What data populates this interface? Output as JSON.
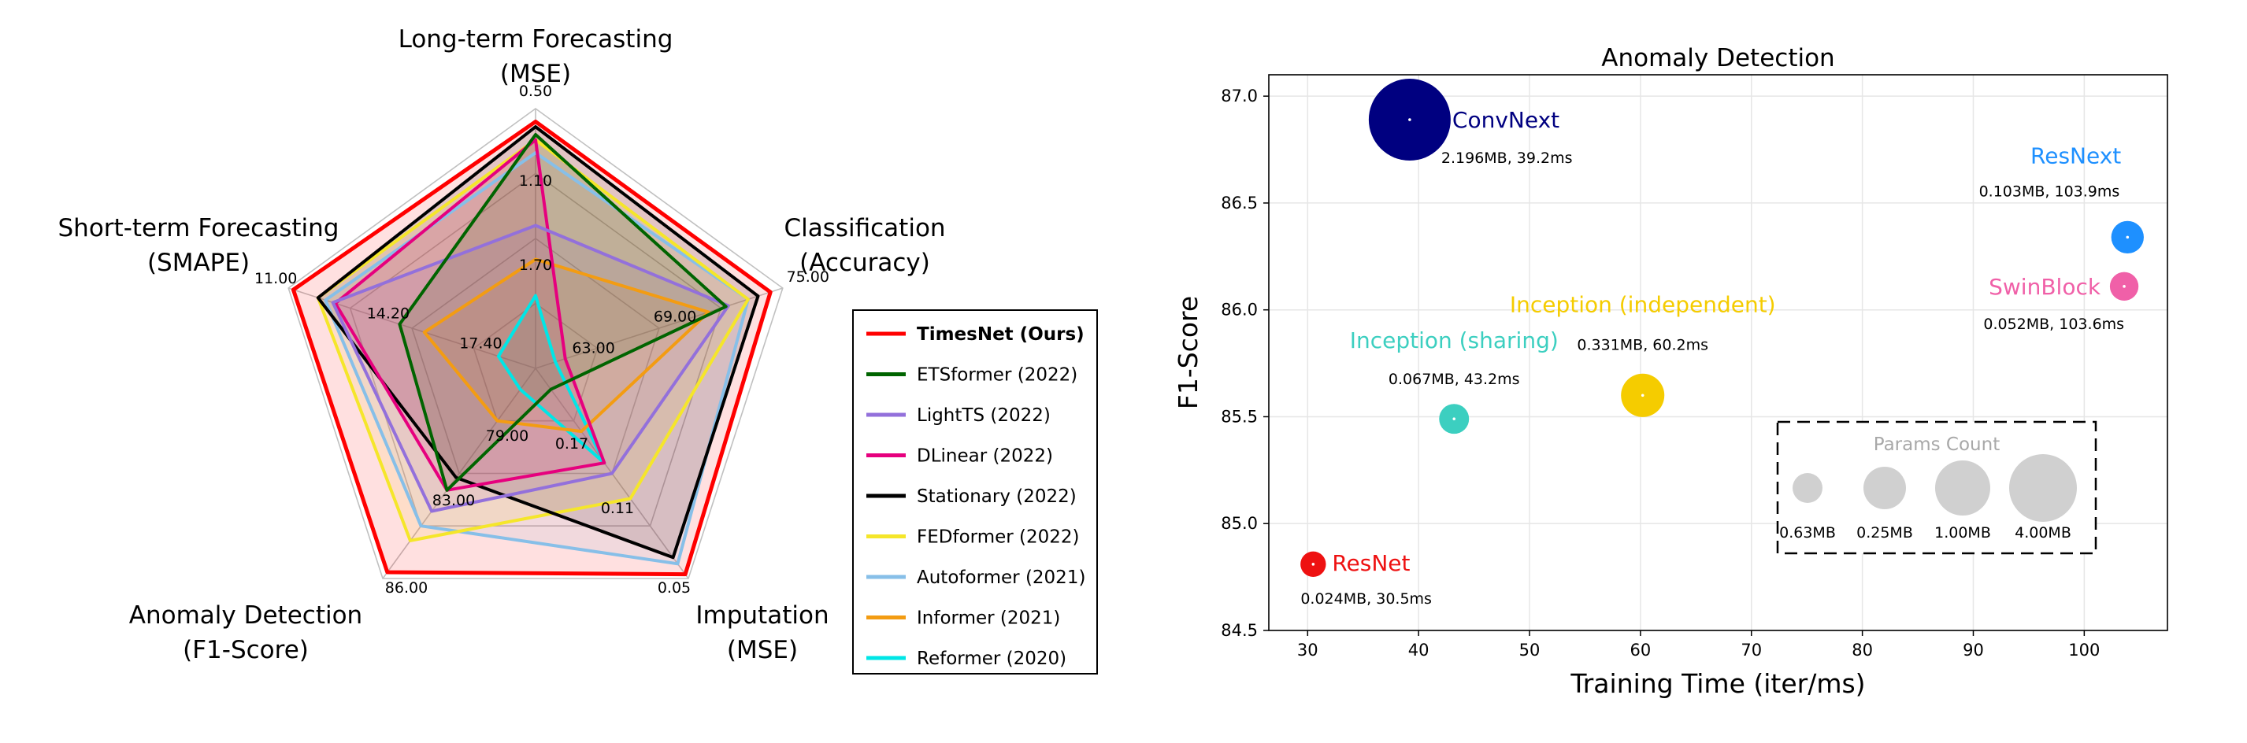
{
  "chart_data": [
    {
      "type": "radar",
      "axes": [
        {
          "label": [
            "Long-term Forecasting",
            "(MSE)"
          ],
          "ticks": [
            "0.50",
            "1.10",
            "1.70"
          ]
        },
        {
          "label": [
            "Classification",
            "(Accuracy)"
          ],
          "ticks": [
            "75.00",
            "69.00",
            "63.00"
          ]
        },
        {
          "label": [
            "Imputation",
            "(MSE)"
          ],
          "ticks": [
            "0.05",
            "0.11",
            "0.17"
          ]
        },
        {
          "label": [
            "Anomaly Detection",
            "(F1-Score)"
          ],
          "ticks": [
            "86.00",
            "83.00",
            "79.00"
          ]
        },
        {
          "label": [
            "Short-term Forecasting",
            "(SMAPE)"
          ],
          "ticks": [
            "11.00",
            "14.20",
            "17.40"
          ]
        }
      ],
      "series": [
        {
          "name": "TimesNet (Ours)",
          "bold": true,
          "color": "#ff0000",
          "values": [
            0.95,
            0.95,
            0.98,
            0.97,
            0.98
          ]
        },
        {
          "name": "ETSformer (2022)",
          "color": "#006400",
          "values": [
            0.9,
            0.77,
            0.1,
            0.58,
            0.55
          ]
        },
        {
          "name": "LightTS (2022)",
          "color": "#9370db",
          "values": [
            0.55,
            0.78,
            0.5,
            0.68,
            0.82
          ]
        },
        {
          "name": "DLinear (2022)",
          "color": "#e6007e",
          "values": [
            0.88,
            0.12,
            0.45,
            0.58,
            0.81
          ]
        },
        {
          "name": "Stationary (2022)",
          "color": "#000000",
          "values": [
            0.93,
            0.9,
            0.9,
            0.52,
            0.88
          ]
        },
        {
          "name": "FEDformer (2022)",
          "color": "#f5e62a",
          "values": [
            0.88,
            0.86,
            0.62,
            0.82,
            0.88
          ]
        },
        {
          "name": "Autoformer (2021)",
          "color": "#87bfe8",
          "values": [
            0.83,
            0.86,
            0.93,
            0.75,
            0.85
          ]
        },
        {
          "name": "Informer (2021)",
          "color": "#f39c12",
          "values": [
            0.42,
            0.7,
            0.3,
            0.25,
            0.45
          ]
        },
        {
          "name": "Reformer (2020)",
          "color": "#00e6e6",
          "values": [
            0.28,
            0.08,
            0.45,
            0.1,
            0.15
          ]
        }
      ]
    },
    {
      "type": "scatter",
      "title": "Anomaly Detection",
      "xlabel": "Training Time (iter/ms)",
      "ylabel": "F1-Score",
      "xlim": [
        26.5,
        107.5
      ],
      "ylim": [
        84.5,
        87.1
      ],
      "xticks": [
        30,
        40,
        50,
        60,
        70,
        80,
        90,
        100
      ],
      "yticks": [
        84.5,
        85.0,
        85.5,
        86.0,
        86.5,
        87.0
      ],
      "grid": true,
      "points": [
        {
          "name": "ConvNext",
          "x": 39.2,
          "y": 86.89,
          "params_mb": 2.196,
          "color": "#000080",
          "label": "ConvNext",
          "info": "2.196MB, 39.2ms"
        },
        {
          "name": "ResNext",
          "x": 103.9,
          "y": 86.34,
          "params_mb": 0.103,
          "color": "#1e90ff",
          "label": "ResNext",
          "info": "0.103MB, 103.9ms"
        },
        {
          "name": "SwinBlock",
          "x": 103.6,
          "y": 86.11,
          "params_mb": 0.052,
          "color": "#f060a8",
          "label": "SwinBlock",
          "info": "0.052MB, 103.6ms"
        },
        {
          "name": "Inception (independent)",
          "x": 60.2,
          "y": 85.6,
          "params_mb": 0.331,
          "color": "#f5cc00",
          "label": "Inception (independent)",
          "info": "0.331MB, 60.2ms"
        },
        {
          "name": "Inception (sharing)",
          "x": 43.2,
          "y": 85.49,
          "params_mb": 0.067,
          "color": "#3ccfc0",
          "label": "Inception (sharing)",
          "info": "0.067MB, 43.2ms"
        },
        {
          "name": "ResNet",
          "x": 30.5,
          "y": 84.81,
          "params_mb": 0.024,
          "color": "#ee1111",
          "label": "ResNet",
          "info": "0.024MB, 30.5ms"
        }
      ],
      "size_legend": {
        "title": "Params Count",
        "items": [
          "0.63MB",
          "0.25MB",
          "1.00MB",
          "4.00MB"
        ]
      }
    }
  ]
}
